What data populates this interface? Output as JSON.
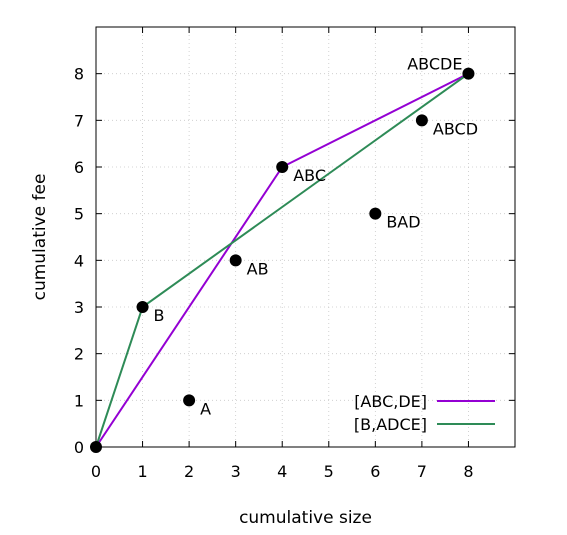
{
  "chart_data": {
    "type": "scatter",
    "xlabel": "cumulative size",
    "ylabel": "cumulative fee",
    "xlim": [
      0,
      9
    ],
    "ylim": [
      0,
      9
    ],
    "xticks": [
      0,
      1,
      2,
      3,
      4,
      5,
      6,
      7,
      8
    ],
    "yticks": [
      0,
      1,
      2,
      3,
      4,
      5,
      6,
      7,
      8
    ],
    "grid": true,
    "legend_position": "bottom-right",
    "points": [
      {
        "label": "",
        "x": 0,
        "y": 0
      },
      {
        "label": "A",
        "x": 2,
        "y": 1
      },
      {
        "label": "B",
        "x": 1,
        "y": 3
      },
      {
        "label": "AB",
        "x": 3,
        "y": 4
      },
      {
        "label": "ABC",
        "x": 4,
        "y": 6
      },
      {
        "label": "BAD",
        "x": 6,
        "y": 5
      },
      {
        "label": "ABCD",
        "x": 7,
        "y": 7
      },
      {
        "label": "ABCDE",
        "x": 8,
        "y": 8
      }
    ],
    "series": [
      {
        "name": "[ABC,DE]",
        "color": "#9400d3",
        "x": [
          0,
          4,
          8
        ],
        "y": [
          0,
          6,
          8
        ]
      },
      {
        "name": "[B,ADCE]",
        "color": "#2e8b57",
        "x": [
          0,
          1,
          8
        ],
        "y": [
          0,
          3,
          8
        ]
      }
    ]
  }
}
